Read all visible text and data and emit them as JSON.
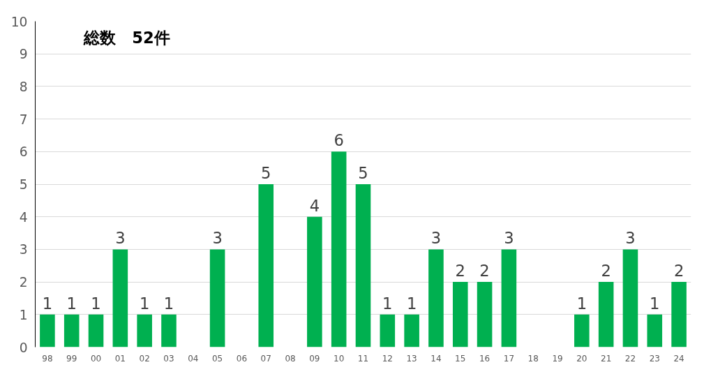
{
  "chart_data": {
    "type": "bar",
    "title": "総数　52件",
    "categories": [
      "98",
      "99",
      "00",
      "01",
      "02",
      "03",
      "04",
      "05",
      "06",
      "07",
      "08",
      "09",
      "10",
      "11",
      "12",
      "13",
      "14",
      "15",
      "16",
      "17",
      "18",
      "19",
      "20",
      "21",
      "22",
      "23",
      "24"
    ],
    "values": [
      1,
      1,
      1,
      3,
      1,
      1,
      0,
      3,
      0,
      5,
      0,
      4,
      6,
      5,
      1,
      1,
      3,
      2,
      2,
      3,
      0,
      0,
      1,
      2,
      3,
      1,
      2
    ],
    "value_labels": [
      "1",
      "1",
      "1",
      "3",
      "1",
      "1",
      null,
      "3",
      null,
      "5",
      null,
      "4",
      "6",
      "5",
      "1",
      "1",
      "3",
      "2",
      "2",
      "3",
      null,
      null,
      "1",
      "2",
      "3",
      "1",
      "2"
    ],
    "color": "#00b050",
    "ylim": [
      0,
      10
    ],
    "yticks": [
      0,
      1,
      2,
      3,
      4,
      5,
      6,
      7,
      8,
      9,
      10
    ],
    "grid": "y"
  }
}
